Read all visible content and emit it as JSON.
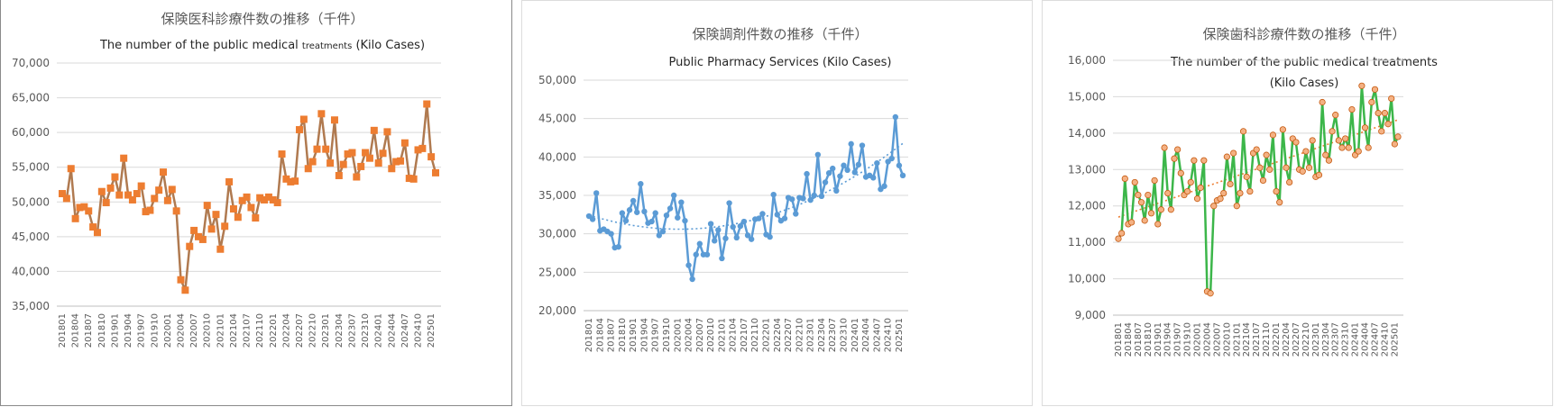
{
  "chart_data": [
    {
      "type": "line",
      "title": "保険医科診療件数の推移（千件）",
      "subtitle_main": "The number of the public medical ",
      "subtitle_small": "treatments",
      "subtitle_end": "  (Kilo Cases)",
      "ylim": [
        35000,
        70000
      ],
      "yticks": [
        "35,000",
        "40,000",
        "45,000",
        "50,000",
        "55,000",
        "60,000",
        "65,000",
        "70,000"
      ],
      "xticks": [
        "201801",
        "201804",
        "201807",
        "201810",
        "201901",
        "201904",
        "201907",
        "201910",
        "202001",
        "202004",
        "202007",
        "202010",
        "202101",
        "202104",
        "202107",
        "202110",
        "202201",
        "202204",
        "202207",
        "202210",
        "202301",
        "202304",
        "202307",
        "202310",
        "202401",
        "202404",
        "202407",
        "202410",
        "202501"
      ],
      "line_color": "#b07a50",
      "marker_color": "#ed7d31",
      "values": [
        51200,
        50500,
        54800,
        47600,
        49200,
        49300,
        48700,
        46400,
        45600,
        51500,
        49900,
        52000,
        53600,
        51000,
        56300,
        51000,
        50300,
        51200,
        52300,
        48600,
        48800,
        50500,
        51700,
        54300,
        50200,
        51800,
        48700,
        38800,
        37300,
        43600,
        45900,
        45000,
        44600,
        49500,
        46100,
        48200,
        43200,
        46500,
        52900,
        49000,
        47800,
        50200,
        50700,
        49200,
        47700,
        50600,
        50300,
        50700,
        50300,
        49900,
        56900,
        53300,
        52900,
        53000,
        60400,
        61900,
        54800,
        55800,
        57600,
        62700,
        57600,
        55600,
        61800,
        53800,
        55400,
        56900,
        57100,
        53600,
        55100,
        57100,
        56300,
        60300,
        55600,
        57000,
        60100,
        54800,
        55800,
        55900,
        58500,
        53400,
        53300,
        57500,
        57700,
        64100,
        56500,
        54200
      ]
    },
    {
      "type": "line",
      "title": "保険調剤件数の推移（千件）",
      "subtitle": "Public Pharmacy Services (Kilo Cases)",
      "ylim": [
        20000,
        50000
      ],
      "yticks": [
        "20,000",
        "25,000",
        "30,000",
        "35,000",
        "40,000",
        "45,000",
        "50,000"
      ],
      "xticks": [
        "201801",
        "201804",
        "201807",
        "201810",
        "201901",
        "201904",
        "201907",
        "201910",
        "202001",
        "202004",
        "202007",
        "202010",
        "202101",
        "202104",
        "202107",
        "202110",
        "202201",
        "202204",
        "202207",
        "202210",
        "202301",
        "202304",
        "202307",
        "202310",
        "202401",
        "202404",
        "202407",
        "202410",
        "202501"
      ],
      "line_color": "#5b9bd5",
      "marker_color": "#5b9bd5",
      "trendline": "polynomial",
      "values": [
        32300,
        31900,
        35300,
        30400,
        30600,
        30300,
        30000,
        28200,
        28300,
        32700,
        31700,
        33100,
        34300,
        32800,
        36500,
        32900,
        31400,
        31600,
        32700,
        29800,
        30300,
        32400,
        33300,
        35000,
        32100,
        34100,
        31700,
        25900,
        24100,
        27300,
        28700,
        27300,
        27300,
        31300,
        29100,
        30500,
        26800,
        29400,
        34000,
        30900,
        29500,
        31000,
        31600,
        29800,
        29300,
        31900,
        32000,
        32600,
        29900,
        29600,
        35100,
        32500,
        31700,
        32000,
        34700,
        34500,
        32600,
        34700,
        34600,
        37800,
        34400,
        35000,
        40300,
        34900,
        36700,
        37900,
        38500,
        35600,
        37500,
        38900,
        38300,
        41700,
        38000,
        39000,
        41500,
        37400,
        37600,
        37300,
        39200,
        35800,
        36200,
        39400,
        39800,
        45200,
        38900,
        37600
      ]
    },
    {
      "type": "line",
      "title": "保険歯科診療件数の推移（千件）",
      "subtitle_line1": "The number of the public medical treatments",
      "subtitle_line2": "(Kilo Cases)",
      "ylim": [
        9000,
        16000
      ],
      "yticks": [
        "9,000",
        "10,000",
        "11,000",
        "12,000",
        "13,000",
        "14,000",
        "15,000",
        "16,000"
      ],
      "xticks": [
        "201801",
        "201804",
        "201807",
        "201810",
        "201901",
        "201904",
        "201907",
        "201910",
        "202001",
        "202004",
        "202007",
        "202010",
        "202101",
        "202104",
        "202107",
        "202110",
        "202201",
        "202204",
        "202207",
        "202210",
        "202301",
        "202304",
        "202307",
        "202310",
        "202401",
        "202404",
        "202407",
        "202410",
        "202501"
      ],
      "line_color": "#3cb64a",
      "marker_color": "#c55a11",
      "marker_fill": "#f4b183",
      "trend_color": "#ed7d31",
      "trendline": "linear",
      "values": [
        11100,
        11250,
        12750,
        11500,
        11550,
        12650,
        12300,
        12100,
        11600,
        12300,
        11800,
        12700,
        11500,
        11900,
        13600,
        12350,
        11900,
        13300,
        13550,
        12900,
        12300,
        12400,
        12650,
        13250,
        12200,
        12500,
        13250,
        9650,
        9600,
        12000,
        12150,
        12200,
        12350,
        13350,
        12600,
        13450,
        12000,
        12350,
        14050,
        12800,
        12400,
        13450,
        13550,
        13050,
        12700,
        13400,
        13000,
        13950,
        12400,
        12100,
        14100,
        13050,
        12650,
        13850,
        13750,
        13000,
        12950,
        13500,
        13050,
        13800,
        12800,
        12850,
        14850,
        13400,
        13250,
        14050,
        14500,
        13800,
        13600,
        13850,
        13600,
        14650,
        13400,
        13500,
        15300,
        14150,
        13600,
        14850,
        15200,
        14550,
        14050,
        14550,
        14250,
        14950,
        13700,
        13900
      ]
    }
  ]
}
